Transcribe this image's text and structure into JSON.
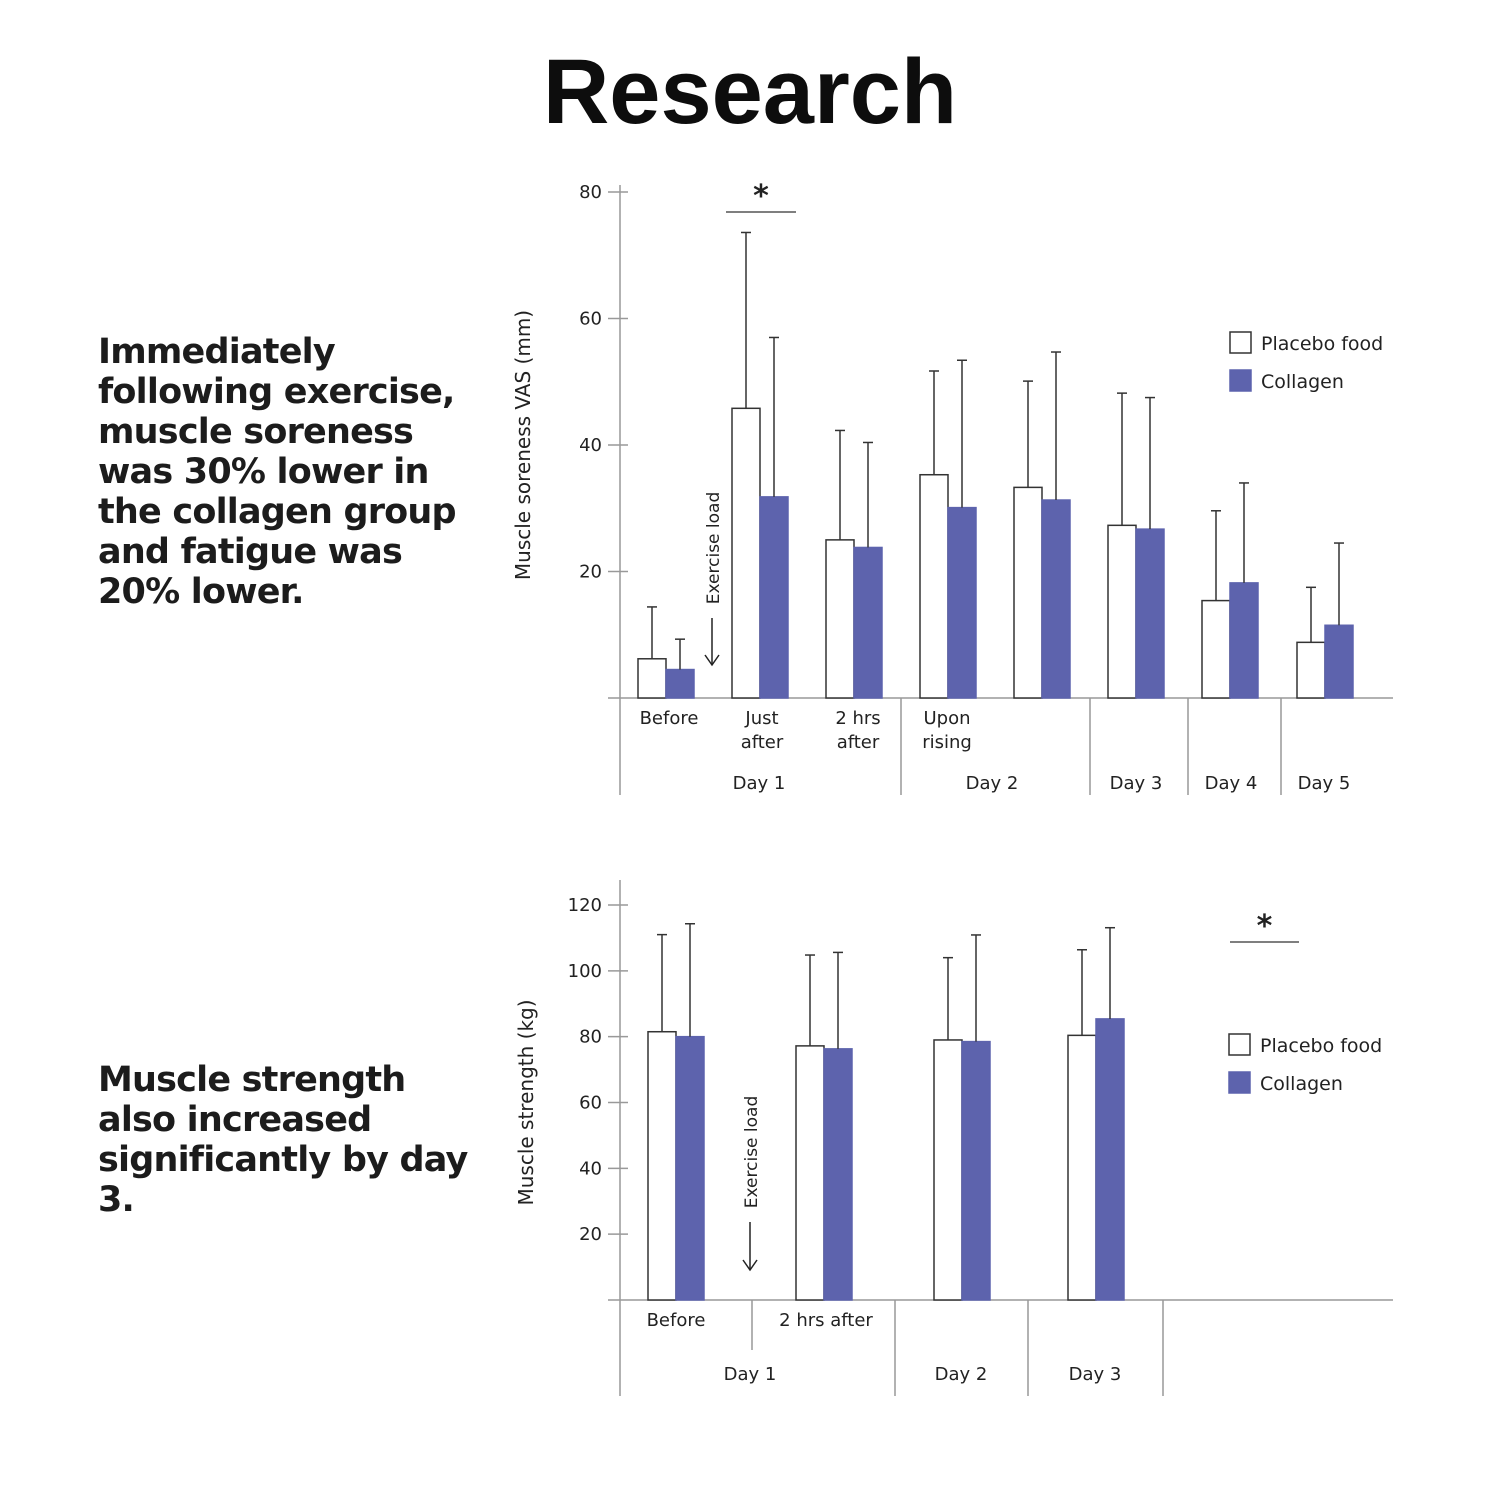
{
  "page": {
    "title": "Research",
    "blurb_1": "Immediately following exercise, muscle soreness was 30% lower in the collagen group and fatigue was 20% lower.",
    "blurb_2": "Muscle strength also increased significantly by day 3."
  },
  "colors": {
    "placebo": "#ffffff",
    "collagen": "#5d63ad",
    "axis": "#999999",
    "error": "#333333"
  },
  "chart_data": [
    {
      "type": "bar",
      "title": "",
      "xlabel": "",
      "ylabel": "Muscle soreness VAS (mm)",
      "ylim": [
        0,
        80
      ],
      "yticks": [
        20,
        40,
        60,
        80
      ],
      "categories": [
        "Before",
        "Just after",
        "2 hrs after",
        "Upon rising",
        "",
        "",
        "",
        ""
      ],
      "groups": [
        {
          "label": "Day 1",
          "span": [
            0,
            3
          ]
        },
        {
          "label": "Day 2",
          "span": [
            3,
            5
          ]
        },
        {
          "label": "Day 3",
          "span": [
            5,
            6
          ]
        },
        {
          "label": "Day 4",
          "span": [
            6,
            7
          ]
        },
        {
          "label": "Day 5",
          "span": [
            7,
            8
          ]
        }
      ],
      "series": [
        {
          "name": "Placebo food",
          "values": [
            6.2,
            45.8,
            25.0,
            35.3,
            33.3,
            27.3,
            15.4,
            8.8
          ],
          "errors": [
            8.2,
            27.8,
            17.3,
            16.4,
            16.8,
            20.9,
            14.2,
            8.7
          ]
        },
        {
          "name": "Collagen",
          "values": [
            4.5,
            31.8,
            23.8,
            30.1,
            31.3,
            26.7,
            18.2,
            11.5
          ],
          "errors": [
            4.8,
            25.2,
            16.6,
            23.3,
            23.4,
            20.8,
            15.8,
            13.0
          ]
        }
      ],
      "annotations": [
        {
          "text": "*",
          "at_categories": [
            1
          ]
        },
        {
          "text": "Exercise load",
          "type": "arrow"
        }
      ],
      "legend": "right"
    },
    {
      "type": "bar",
      "title": "",
      "xlabel": "",
      "ylabel": "Muscle strength (kg)",
      "ylim": [
        0,
        120
      ],
      "yticks": [
        20,
        40,
        60,
        80,
        100,
        120
      ],
      "categories": [
        "Before",
        "2 hrs after",
        "",
        ""
      ],
      "groups": [
        {
          "label": "Day 1",
          "span": [
            0,
            2
          ]
        },
        {
          "label": "Day 2",
          "span": [
            2,
            3
          ]
        },
        {
          "label": "Day 3",
          "span": [
            3,
            4
          ]
        }
      ],
      "series": [
        {
          "name": "Placebo food",
          "values": [
            81.5,
            77.2,
            79.0,
            80.4
          ],
          "errors": [
            29.5,
            27.6,
            25.0,
            26.0
          ]
        },
        {
          "name": "Collagen",
          "values": [
            80.0,
            76.3,
            78.5,
            85.4
          ],
          "errors": [
            34.3,
            29.3,
            32.4,
            27.7
          ]
        }
      ],
      "annotations": [
        {
          "text": "*",
          "type": "significance"
        },
        {
          "text": "Exercise load",
          "type": "arrow"
        }
      ],
      "legend": "right"
    }
  ]
}
